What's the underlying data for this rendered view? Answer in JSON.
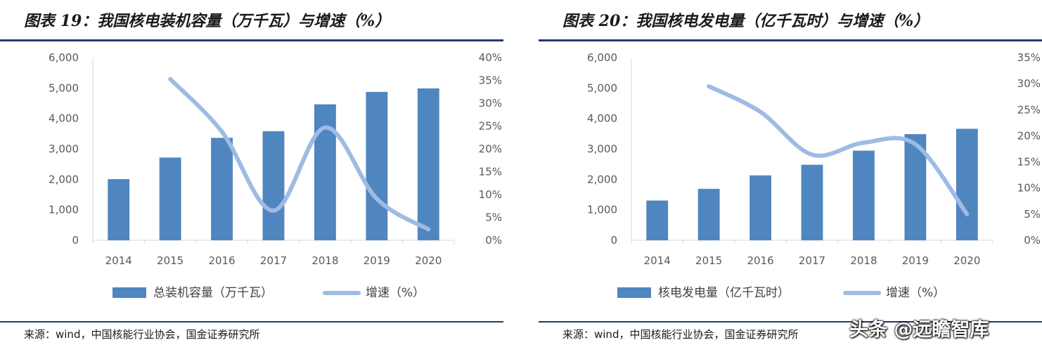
{
  "panels": [
    {
      "title": "图表 19：我国核电装机容量（万千瓦）与增速（%）",
      "source": "来源：wind，中国核能行业协会，国金证券研究所"
    },
    {
      "title": "图表 20：我国核电发电量（亿千瓦时）与增速（%）",
      "source": "来源：wind，中国核能行业协会，国金证券研究所"
    }
  ],
  "watermark": "头条 @远瞻智库",
  "colors": {
    "bar": "#4f86c0",
    "line": "#9dbbe4",
    "rule": "#1f3a6e"
  },
  "chart_data": [
    {
      "type": "bar",
      "categories": [
        "2014",
        "2015",
        "2016",
        "2017",
        "2018",
        "2019",
        "2020"
      ],
      "series": [
        {
          "name": "总装机容量（万千瓦）",
          "type": "bar",
          "axis": "left",
          "values": [
            2008,
            2717,
            3364,
            3582,
            4466,
            4874,
            4989
          ]
        },
        {
          "name": "增速（%）",
          "type": "line",
          "axis": "right",
          "values": [
            null,
            35.3,
            23.8,
            6.5,
            24.7,
            9.1,
            2.4
          ]
        }
      ],
      "y_left": {
        "min": 0,
        "max": 6000,
        "ticks": [
          "0",
          "1,000",
          "2,000",
          "3,000",
          "4,000",
          "5,000",
          "6,000"
        ]
      },
      "y_right": {
        "min": 0,
        "max": 40,
        "ticks": [
          "0%",
          "5%",
          "10%",
          "15%",
          "20%",
          "25%",
          "30%",
          "35%",
          "40%"
        ]
      },
      "grid": false,
      "legend": "bottom"
    },
    {
      "type": "bar",
      "categories": [
        "2014",
        "2015",
        "2016",
        "2017",
        "2018",
        "2019",
        "2020"
      ],
      "series": [
        {
          "name": "核电发电量（亿千瓦时）",
          "type": "bar",
          "axis": "left",
          "values": [
            1305,
            1690,
            2132,
            2481,
            2944,
            3487,
            3662
          ]
        },
        {
          "name": "增速（%）",
          "type": "line",
          "axis": "right",
          "values": [
            null,
            29.5,
            24.6,
            16.4,
            18.7,
            18.4,
            5.0
          ]
        }
      ],
      "y_left": {
        "min": 0,
        "max": 6000,
        "ticks": [
          "0",
          "1,000",
          "2,000",
          "3,000",
          "4,000",
          "5,000",
          "6,000"
        ]
      },
      "y_right": {
        "min": 0,
        "max": 35,
        "ticks": [
          "0%",
          "5%",
          "10%",
          "15%",
          "20%",
          "25%",
          "30%",
          "35%"
        ]
      },
      "grid": false,
      "legend": "bottom"
    }
  ]
}
